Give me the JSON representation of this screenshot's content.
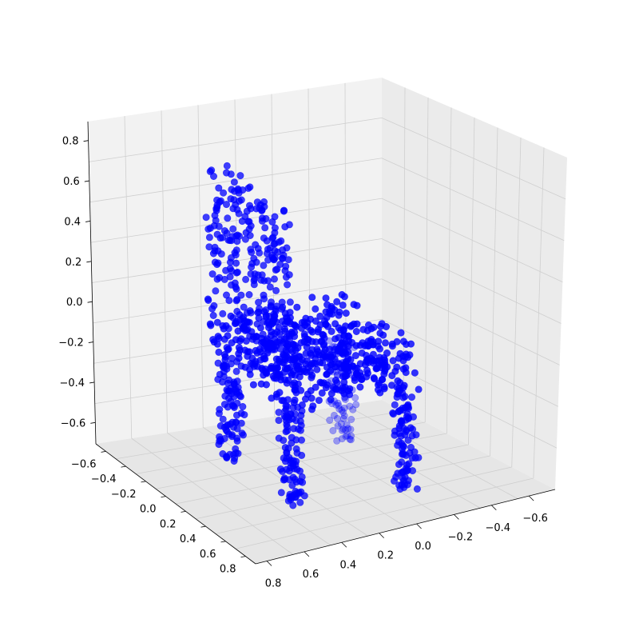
{
  "chart_data": {
    "type": "scatter",
    "projection": "3d",
    "title": "",
    "xlabel": "",
    "ylabel": "",
    "zlabel": "",
    "marker_color": "#0000ff",
    "pane_color": "#f2f2f2",
    "grid_color": "#c8c8c8",
    "grid": true,
    "axes": {
      "left_depth": {
        "ticks": [
          -0.6,
          -0.4,
          -0.2,
          0.0,
          0.2,
          0.4,
          0.6,
          0.8
        ],
        "tick_labels": [
          "−0.6",
          "−0.4",
          "−0.2",
          "0.0",
          "0.2",
          "0.4",
          "0.6",
          "0.8"
        ]
      },
      "right_depth": {
        "ticks": [
          0.8,
          0.6,
          0.4,
          0.2,
          0.0,
          -0.2,
          -0.4,
          -0.6
        ],
        "tick_labels": [
          "0.8",
          "0.6",
          "0.4",
          "0.2",
          "0.0",
          "−0.2",
          "−0.4",
          "−0.6"
        ]
      },
      "vertical": {
        "ticks": [
          -0.6,
          -0.4,
          -0.2,
          0.0,
          0.2,
          0.4,
          0.6,
          0.8
        ],
        "tick_labels": [
          "−0.6",
          "−0.4",
          "−0.2",
          "0.0",
          "0.2",
          "0.4",
          "0.6",
          "0.8"
        ]
      }
    },
    "point_cloud": {
      "description_of_shape": "chair",
      "seat": {
        "x": [
          -0.45,
          0.45
        ],
        "y": [
          -0.45,
          0.45
        ],
        "z": [
          -0.3,
          -0.05
        ]
      },
      "backrest": {
        "x": [
          -0.45,
          0.45
        ],
        "y": [
          -0.45,
          -0.35
        ],
        "z": [
          -0.05,
          0.8
        ]
      },
      "legs": [
        {
          "x": 0.35,
          "y": 0.35,
          "z": [
            -0.85,
            -0.3
          ]
        },
        {
          "x": -0.35,
          "y": 0.35,
          "z": [
            -0.85,
            -0.3
          ]
        },
        {
          "x": 0.35,
          "y": -0.35,
          "z": [
            -0.85,
            -0.3
          ]
        },
        {
          "x": -0.35,
          "y": -0.35,
          "z": [
            -0.85,
            -0.3
          ]
        }
      ]
    }
  }
}
